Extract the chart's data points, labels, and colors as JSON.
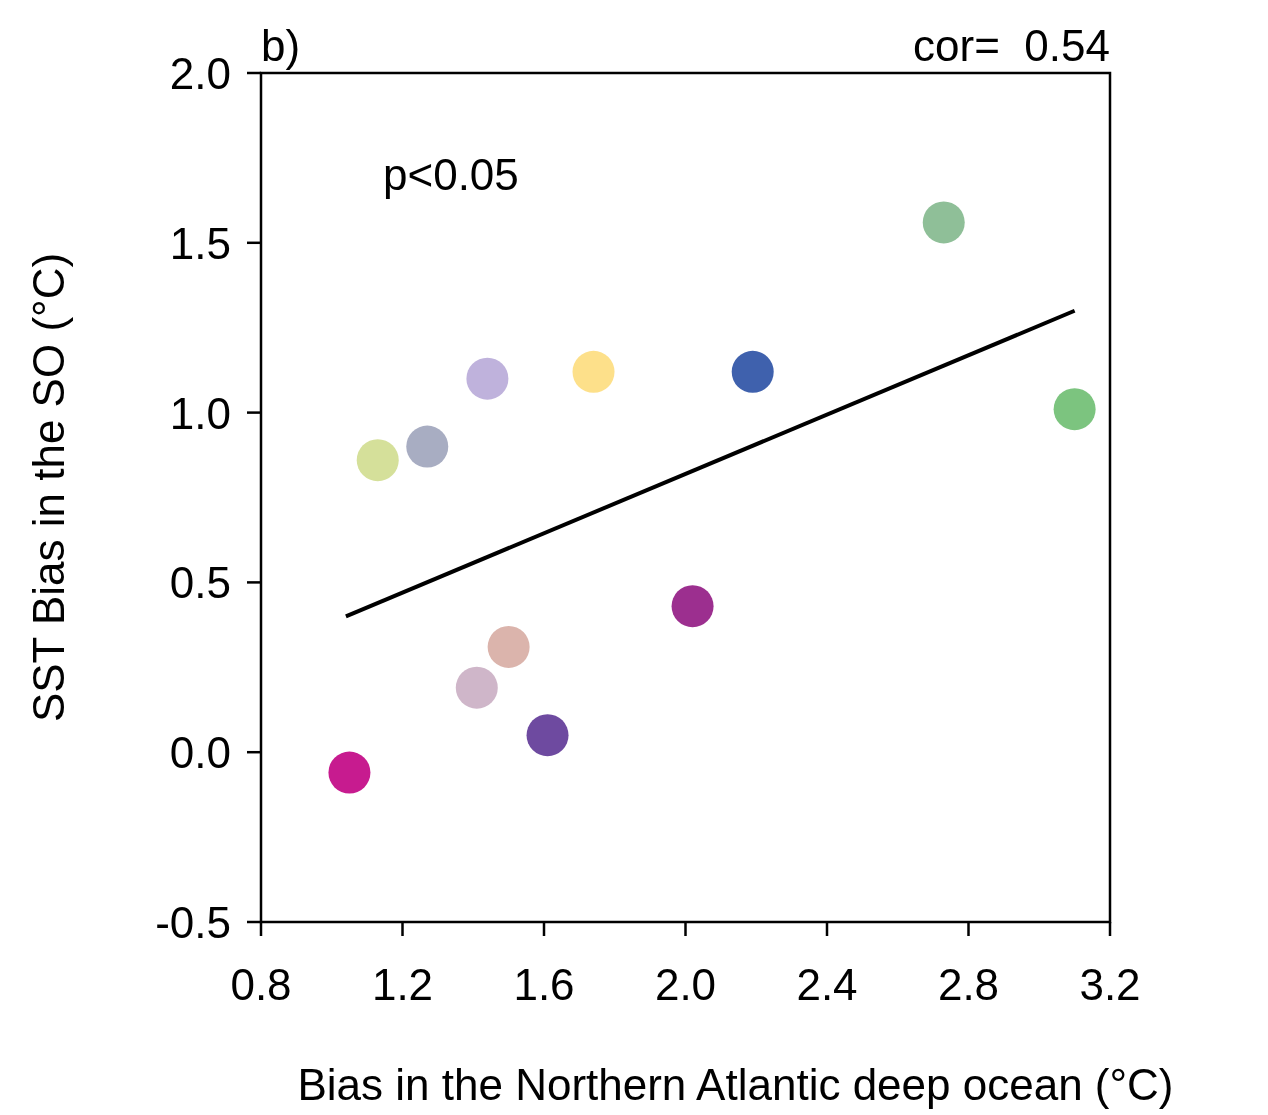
{
  "chart_data": {
    "type": "scatter",
    "xlabel": "Bias in the Northern Atlantic deep ocean (°C)",
    "ylabel": "SST Bias in the SO (°C)",
    "annotations": [
      "b)",
      "cor=  0.54",
      "p<0.05"
    ],
    "xlim": [
      0.8,
      3.2
    ],
    "xticks": [
      0.8,
      1.2,
      1.6,
      {
        "value": 2,
        "label": "2.0"
      },
      2.4,
      2.8,
      3.2
    ],
    "ylim": [
      -0.5,
      2
    ],
    "yticks": [
      -0.5,
      {
        "value": 0,
        "label": "0.0"
      },
      0.5,
      {
        "value": 1,
        "label": "1.0"
      },
      1.5,
      {
        "value": 2,
        "label": "2.0"
      }
    ],
    "grid": false,
    "series": [
      {
        "marker": "circle",
        "x": [
          1.05,
          1.13,
          1.27,
          1.44,
          1.74,
          2.19,
          2.73,
          3.1,
          2.02,
          1.5,
          1.41,
          1.61
        ],
        "values": [
          -0.06,
          0.86,
          0.9,
          1.1,
          1.12,
          1.12,
          1.56,
          1.01,
          0.43,
          0.31,
          0.19,
          0.05
        ],
        "colors": [
          "#c71b8f",
          "#d5e09a",
          "#a8adc2",
          "#bfb2dc",
          "#fde08a",
          "#3f61ad",
          "#8fbf98",
          "#7cc47f",
          "#9c2f8f",
          "#dbb4ac",
          "#cfb6c9",
          "#6e4aa0"
        ]
      },
      {
        "type": "line",
        "x": [
          1.04,
          3.1
        ],
        "values": [
          0.4,
          1.3
        ],
        "color": "#000000",
        "line_style": "solid"
      }
    ]
  }
}
